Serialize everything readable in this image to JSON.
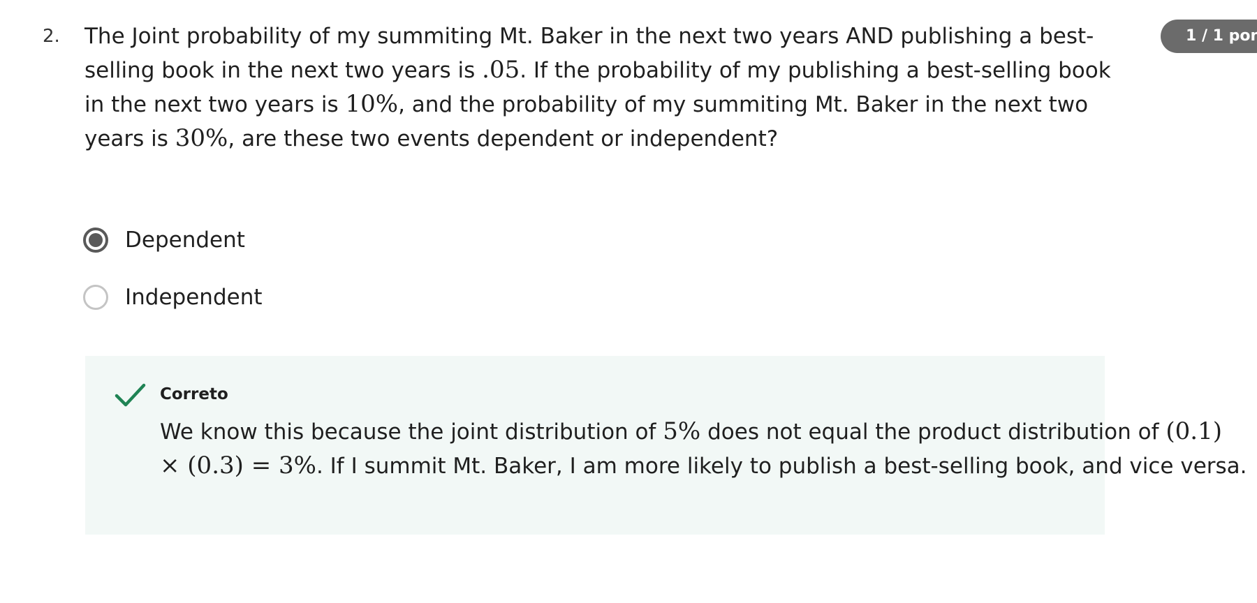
{
  "question": {
    "number": "2.",
    "text": {
      "p1": "The Joint probability of my summiting Mt. Baker in the next two years AND publishing a best-selling book in the next two years is ",
      "m1": ".05",
      "p2": ". If the probability of my publishing a best-selling book in the next two years is ",
      "m2": "10%",
      "p3": ", and the probability of my summiting Mt. Baker in the next two years is ",
      "m3": "30%",
      "p4": ", are these two events dependent or independent?"
    }
  },
  "score": "1 / 1 pon",
  "options": [
    {
      "label": "Dependent",
      "selected": true
    },
    {
      "label": "Independent",
      "selected": false
    }
  ],
  "feedback": {
    "status": "Correto",
    "icon": "checkmark-icon",
    "color": "#1f8354",
    "text": {
      "p1": "We know this because the joint distribution of ",
      "m1": "5%",
      "p2": " does not equal the product distribution of ",
      "m2": "(0.1) × (0.3) = 3%",
      "p3": ". If I summit Mt. Baker, I am more likely to publish a best-selling book, and vice versa."
    }
  }
}
